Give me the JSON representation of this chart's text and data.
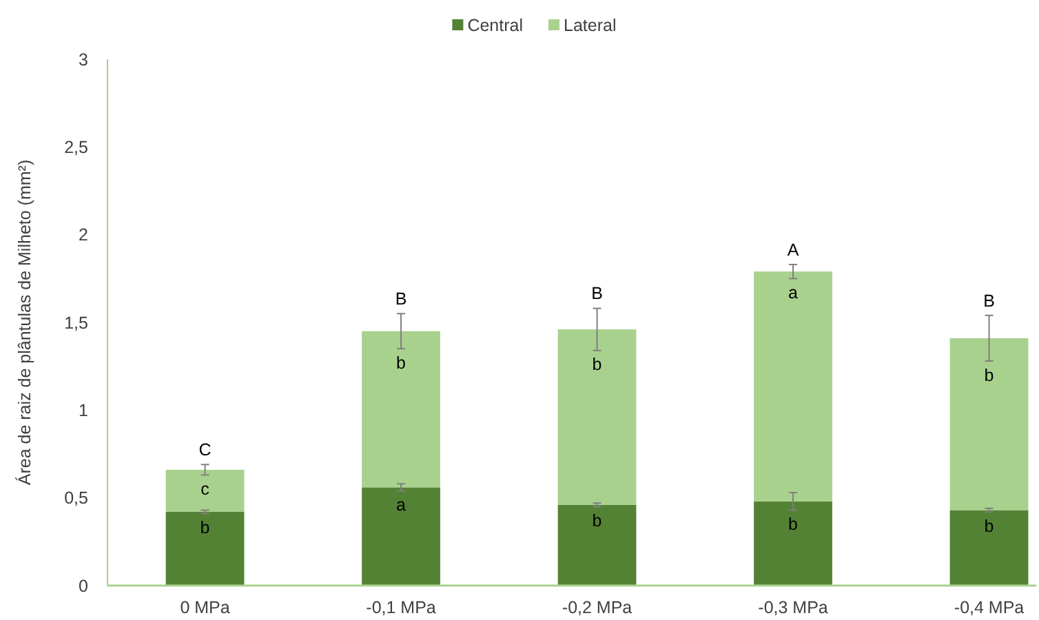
{
  "chart_data": {
    "type": "bar",
    "stacked": true,
    "categories": [
      "0 MPa",
      "-0,1 MPa",
      "-0,2 MPa",
      "-0,3 MPa",
      "-0,4 MPa"
    ],
    "series": [
      {
        "name": "Central",
        "color": "#548235",
        "values": [
          0.42,
          0.56,
          0.46,
          0.48,
          0.43
        ],
        "errors": [
          0.01,
          0.02,
          0.01,
          0.05,
          0.01
        ]
      },
      {
        "name": "Lateral",
        "color": "#a9d18e",
        "values": [
          0.24,
          0.89,
          1.0,
          1.31,
          0.98
        ],
        "errors": [
          0.03,
          0.1,
          0.12,
          0.04,
          0.13
        ]
      }
    ],
    "ylabel": "Área de raiz de plântulas de Milheto (mm²)",
    "ylim": [
      0,
      3
    ],
    "yticks": [
      0,
      {
        "value": 0.5,
        "label": "0,5"
      },
      1,
      {
        "value": 1.5,
        "label": "1,5"
      },
      2,
      {
        "value": 2.5,
        "label": "2,5"
      },
      3
    ],
    "legend": "top",
    "annotations": [
      {
        "text": "C",
        "x": "0 MPa",
        "y": 0.69
      },
      {
        "text": "c",
        "x": "0 MPa",
        "y": 0.66
      },
      {
        "text": "b",
        "x": "0 MPa",
        "y": 0.42
      },
      {
        "text": "B",
        "x": "-0,1 MPa",
        "y": 1.55
      },
      {
        "text": "b",
        "x": "-0,1 MPa",
        "y": 1.45
      },
      {
        "text": "a",
        "x": "-0,1 MPa",
        "y": 0.56
      },
      {
        "text": "B",
        "x": "-0,2 MPa",
        "y": 1.58
      },
      {
        "text": "b",
        "x": "-0,2 MPa",
        "y": 1.46
      },
      {
        "text": "b",
        "x": "-0,2 MPa",
        "y": 0.46
      },
      {
        "text": "A",
        "x": "-0,3 MPa",
        "y": 1.83
      },
      {
        "text": "a",
        "x": "-0,3 MPa",
        "y": 1.79
      },
      {
        "text": "b",
        "x": "-0,3 MPa",
        "y": 0.48
      },
      {
        "text": "B",
        "x": "-0,4 MPa",
        "y": 1.54
      },
      {
        "text": "b",
        "x": "-0,4 MPa",
        "y": 1.41
      },
      {
        "text": "b",
        "x": "-0,4 MPa",
        "y": 0.43
      }
    ]
  }
}
